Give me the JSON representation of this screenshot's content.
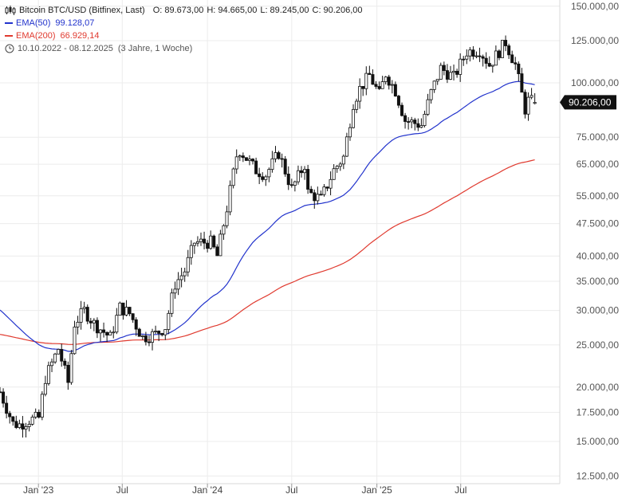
{
  "legend": {
    "title": "Bitcoin BTC/USD (Bitfinex, Last)",
    "ohlc": {
      "o": "O: 89.673,00",
      "h": "H: 94.665,00",
      "l": "L: 89.245,00",
      "c": "C: 90.206,00"
    },
    "ema50": {
      "label": "EMA(50)",
      "value": "99.128,07",
      "color": "#2233cc"
    },
    "ema200": {
      "label": "EMA(200)",
      "value": "66.929,14",
      "color": "#e03a2f"
    },
    "range": "10.10.2022 - 08.12.2025",
    "period": "(3 Jahre, 1 Woche)"
  },
  "chart_data": {
    "type": "candlestick",
    "scale": "log",
    "interval": "weekly",
    "ylim": [
      12000,
      155000
    ],
    "xlim": [
      "2022-10-10",
      "2026-01-31"
    ],
    "y_ticks": [
      {
        "value": 12500,
        "label": "12.500,00"
      },
      {
        "value": 15000,
        "label": "15.000,00"
      },
      {
        "value": 17500,
        "label": "17.500,00"
      },
      {
        "value": 20000,
        "label": "20.000,00"
      },
      {
        "value": 25000,
        "label": "25.000,00"
      },
      {
        "value": 30000,
        "label": "30.000,00"
      },
      {
        "value": 35000,
        "label": "35.000,00"
      },
      {
        "value": 40000,
        "label": "40.000,00"
      },
      {
        "value": 47500,
        "label": "47.500,00"
      },
      {
        "value": 55000,
        "label": "55.000,00"
      },
      {
        "value": 65000,
        "label": "65.000,00"
      },
      {
        "value": 75000,
        "label": "75.000,00"
      },
      {
        "value": 100000,
        "label": "100.000,00"
      },
      {
        "value": 125000,
        "label": "125.000,00"
      },
      {
        "value": 150000,
        "label": "150.000,00"
      }
    ],
    "x_ticks": [
      {
        "date": "2023-01-01",
        "label": "Jan '23"
      },
      {
        "date": "2023-07-01",
        "label": "Jul"
      },
      {
        "date": "2024-01-01",
        "label": "Jan '24"
      },
      {
        "date": "2024-07-01",
        "label": "Jul"
      },
      {
        "date": "2025-01-01",
        "label": "Jan '25"
      },
      {
        "date": "2025-07-01",
        "label": "Jul"
      }
    ],
    "last_price": {
      "value": 90206,
      "label": "90.206,00"
    },
    "close_anchors": [
      [
        "2022-10-10",
        19500
      ],
      [
        "2022-11-07",
        16500
      ],
      [
        "2022-11-21",
        16400
      ],
      [
        "2022-12-12",
        16800
      ],
      [
        "2023-01-02",
        17000
      ],
      [
        "2023-01-16",
        21000
      ],
      [
        "2023-02-13",
        24500
      ],
      [
        "2023-03-06",
        20500
      ],
      [
        "2023-03-20",
        28000
      ],
      [
        "2023-04-10",
        30000
      ],
      [
        "2023-05-01",
        28000
      ],
      [
        "2023-06-05",
        26000
      ],
      [
        "2023-06-26",
        30500
      ],
      [
        "2023-07-17",
        29500
      ],
      [
        "2023-08-14",
        26000
      ],
      [
        "2023-09-11",
        26500
      ],
      [
        "2023-10-02",
        27500
      ],
      [
        "2023-10-23",
        34500
      ],
      [
        "2023-11-13",
        37000
      ],
      [
        "2023-12-04",
        43000
      ],
      [
        "2024-01-08",
        43000
      ],
      [
        "2024-01-22",
        40000
      ],
      [
        "2024-02-12",
        51500
      ],
      [
        "2024-03-04",
        68000
      ],
      [
        "2024-03-11",
        70000
      ],
      [
        "2024-04-15",
        63000
      ],
      [
        "2024-05-06",
        61500
      ],
      [
        "2024-06-03",
        69000
      ],
      [
        "2024-07-01",
        57000
      ],
      [
        "2024-07-29",
        65000
      ],
      [
        "2024-08-05",
        56000
      ],
      [
        "2024-09-02",
        54000
      ],
      [
        "2024-09-30",
        63000
      ],
      [
        "2024-10-21",
        67500
      ],
      [
        "2024-11-11",
        90000
      ],
      [
        "2024-11-25",
        97000
      ],
      [
        "2024-12-16",
        104000
      ],
      [
        "2025-01-06",
        94000
      ],
      [
        "2025-01-20",
        105000
      ],
      [
        "2025-02-10",
        96000
      ],
      [
        "2025-03-03",
        82000
      ],
      [
        "2025-04-07",
        80000
      ],
      [
        "2025-04-28",
        95000
      ],
      [
        "2025-05-19",
        108000
      ],
      [
        "2025-06-16",
        103000
      ],
      [
        "2025-07-14",
        118000
      ],
      [
        "2025-08-11",
        119000
      ],
      [
        "2025-09-01",
        110000
      ],
      [
        "2025-10-06",
        124000
      ],
      [
        "2025-10-27",
        110000
      ],
      [
        "2025-11-17",
        87000
      ],
      [
        "2025-11-24",
        91000
      ],
      [
        "2025-12-08",
        90206
      ]
    ]
  }
}
